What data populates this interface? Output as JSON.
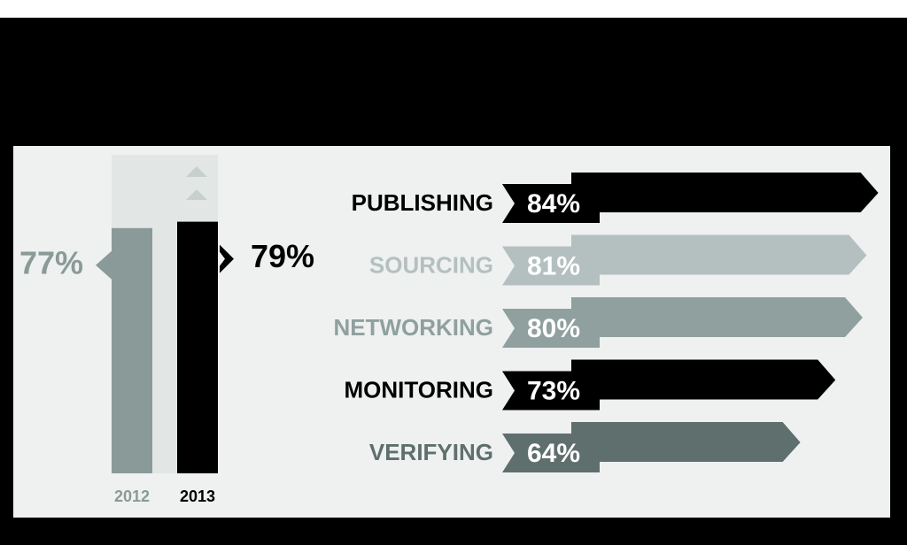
{
  "chart_data": [
    {
      "type": "bar",
      "categories": [
        "2012",
        "2013"
      ],
      "values": [
        77,
        79
      ],
      "value_labels": [
        "77%",
        "79%"
      ],
      "colors": [
        "#8a9a98",
        "#000000"
      ]
    },
    {
      "type": "barh",
      "categories": [
        "PUBLISHING",
        "SOURCING",
        "NETWORKING",
        "MONITORING",
        "VERIFYING"
      ],
      "values": [
        84,
        81,
        80,
        73,
        64
      ],
      "value_labels": [
        "84%",
        "81%",
        "80%",
        "73%",
        "64%"
      ],
      "colors": [
        "#000000",
        "#b4c0c0",
        "#8fa09e",
        "#000000",
        "#5f6f6d"
      ]
    }
  ]
}
